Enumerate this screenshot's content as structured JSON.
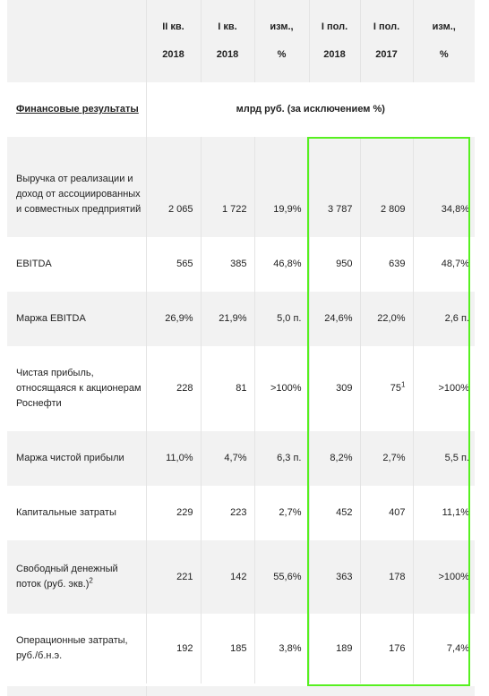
{
  "header": {
    "columns": [
      {
        "line1": "II кв.",
        "line2": "2018"
      },
      {
        "line1": "I кв.",
        "line2": "2018"
      },
      {
        "line1": "изм.,",
        "line2": "%"
      },
      {
        "line1": "I пол.",
        "line2": "2018"
      },
      {
        "line1": "I пол.",
        "line2": "2017"
      },
      {
        "line1": "изм.,",
        "line2": "%"
      }
    ]
  },
  "section": {
    "title": "Финансовые результаты",
    "units": "млрд руб. (за исключением %)"
  },
  "rows": [
    {
      "label": "Выручка от реализации и доход от ассоциированных и совместных предприятий",
      "values": [
        "2 065",
        "1 722",
        "19,9%",
        "3 787",
        "2 809",
        "34,8%"
      ],
      "sup": ""
    },
    {
      "label": "EBITDA",
      "values": [
        "565",
        "385",
        "46,8%",
        "950",
        "639",
        "48,7%"
      ],
      "sup": ""
    },
    {
      "label": "Маржа EBITDA",
      "values": [
        "26,9%",
        "21,9%",
        "5,0 п.",
        "24,6%",
        "22,0%",
        "2,6 п."
      ],
      "sup": ""
    },
    {
      "label": "Чистая прибыль, относящаяся к акционерам Роснефти",
      "values": [
        "228",
        "81",
        ">100%",
        "309",
        "75",
        ">100%"
      ],
      "sup": "1"
    },
    {
      "label": "Маржа чистой прибыли",
      "values": [
        "11,0%",
        "4,7%",
        "6,3 п.",
        "8,2%",
        "2,7%",
        "5,5 п."
      ],
      "sup": ""
    },
    {
      "label": "Капитальные затраты",
      "values": [
        "229",
        "223",
        "2,7%",
        "452",
        "407",
        "11,1%"
      ],
      "sup": ""
    },
    {
      "label": "Свободный денежный поток (руб. экв.)",
      "labelSup": "2",
      "values": [
        "221",
        "142",
        "55,6%",
        "363",
        "178",
        ">100%"
      ],
      "sup": ""
    },
    {
      "label": "Операционные затраты, руб./б.н.э.",
      "values": [
        "192",
        "185",
        "3,8%",
        "189",
        "176",
        "7,4%"
      ],
      "sup": ""
    }
  ],
  "highlight_color": "#57f020"
}
